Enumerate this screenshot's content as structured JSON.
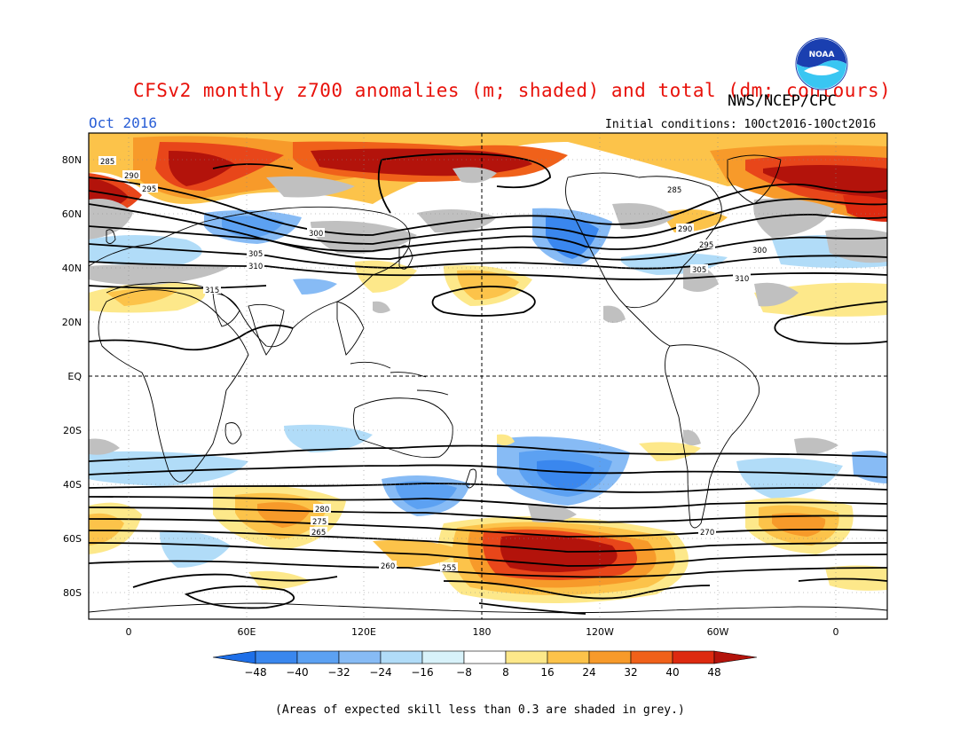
{
  "header": {
    "title": "CFSv2 monthly z700 anomalies (m; shaded) and total (dm; contours)",
    "title_color": "#e8110a",
    "agency": "NWS/NCEP/CPC",
    "month": "Oct 2016",
    "month_color": "#2a5fd6",
    "initial_conditions": "Initial conditions: 10Oct2016-10Oct2016"
  },
  "logo": {
    "icon": "noaa-logo-icon",
    "text": "NOAA"
  },
  "map": {
    "lon_ticks": [
      "0",
      "60E",
      "120E",
      "180",
      "120W",
      "60W",
      "0"
    ],
    "lat_ticks": [
      "80N",
      "60N",
      "40N",
      "20N",
      "EQ",
      "20S",
      "40S",
      "60S",
      "80S"
    ],
    "contour_labels": [
      "285",
      "290",
      "295",
      "300",
      "305",
      "310",
      "315",
      "310",
      "305",
      "300",
      "295",
      "290",
      "285",
      "280",
      "275",
      "270",
      "265",
      "260",
      "255"
    ]
  },
  "colorbar": {
    "labels": [
      "-48",
      "-40",
      "-32",
      "-24",
      "-16",
      "-8",
      "8",
      "16",
      "24",
      "32",
      "40",
      "48"
    ],
    "colors": [
      "#1e6fe8",
      "#3a87ee",
      "#5ca1f2",
      "#87bbf5",
      "#b1dcf8",
      "#d8f2fa",
      "#ffffff",
      "#fde88a",
      "#fcc34a",
      "#f79a2a",
      "#f0611a",
      "#dd2a10",
      "#b3130b"
    ]
  },
  "footnote": "(Areas of expected skill less than 0.3 are shaded in grey.)"
}
